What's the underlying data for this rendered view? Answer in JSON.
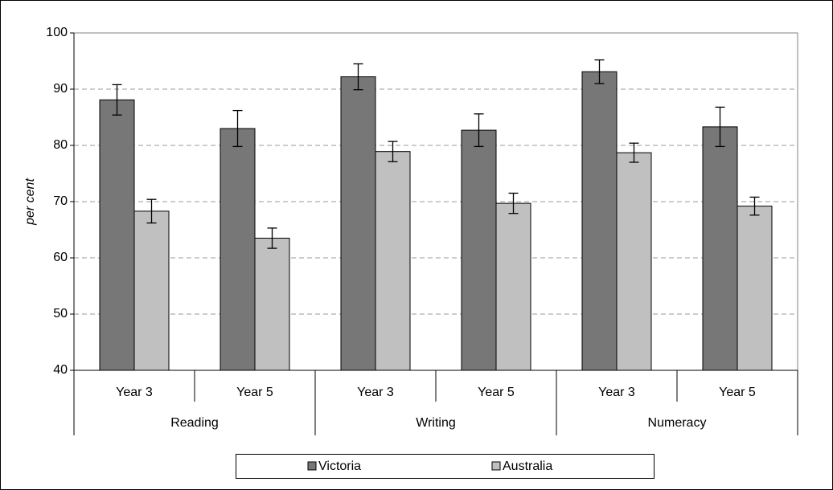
{
  "chart_data": {
    "type": "bar",
    "y_label": "per cent",
    "categories": [
      "Year 3",
      "Year 5",
      "Year 3",
      "Year 5",
      "Year 3",
      "Year 5"
    ],
    "group_labels": [
      "Reading",
      "Writing",
      "Numeracy"
    ],
    "series": [
      {
        "name": "Victoria",
        "color": "#777777",
        "values": [
          88.1,
          83.0,
          92.2,
          82.7,
          93.1,
          83.3
        ],
        "errors": [
          2.7,
          3.2,
          2.3,
          2.9,
          2.1,
          3.5
        ]
      },
      {
        "name": "Australia",
        "color": "#c0c0c0",
        "values": [
          68.3,
          63.5,
          78.9,
          69.7,
          78.7,
          69.2
        ],
        "errors": [
          2.1,
          1.8,
          1.8,
          1.8,
          1.7,
          1.6
        ]
      }
    ],
    "ylim": [
      40,
      100
    ],
    "yticks": [
      40,
      50,
      60,
      70,
      80,
      90,
      100
    ],
    "grid": true
  }
}
